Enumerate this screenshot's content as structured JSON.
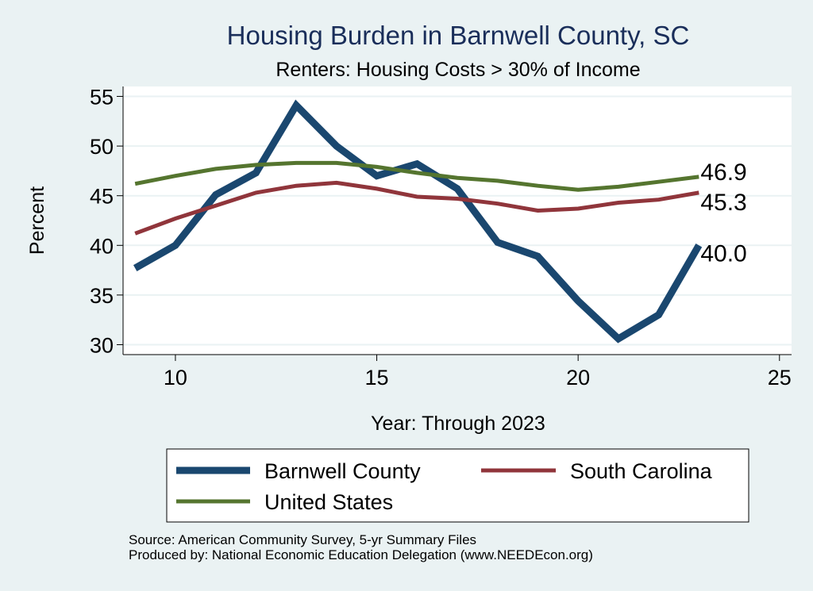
{
  "chart_data": {
    "type": "line",
    "title": "Housing Burden in Barnwell County, SC",
    "subtitle": "Renters: Housing Costs > 30% of Income",
    "xlabel": "Year: Through 2023",
    "ylabel": "Percent",
    "xlim": [
      8.7,
      25.3
    ],
    "ylim": [
      29,
      56
    ],
    "xticks": [
      10,
      15,
      20,
      25
    ],
    "yticks": [
      30,
      35,
      40,
      45,
      50,
      55
    ],
    "grid": true,
    "legend_position": "bottom",
    "series": [
      {
        "name": "Barnwell County",
        "color": "#1a476f",
        "width": 9,
        "end_label": "40.0",
        "x": [
          9,
          10,
          11,
          12,
          13,
          14,
          15,
          16,
          17,
          18,
          19,
          20,
          21,
          22,
          23
        ],
        "y": [
          37.7,
          40.0,
          45.1,
          47.3,
          54.1,
          50.0,
          47.0,
          48.2,
          45.7,
          40.3,
          38.9,
          34.4,
          30.6,
          33.0,
          40.0
        ]
      },
      {
        "name": "South Carolina",
        "color": "#90353b",
        "width": 5,
        "end_label": "45.3",
        "x": [
          9,
          10,
          11,
          12,
          13,
          14,
          15,
          16,
          17,
          18,
          19,
          20,
          21,
          22,
          23
        ],
        "y": [
          41.2,
          42.7,
          44.0,
          45.3,
          46.0,
          46.3,
          45.7,
          44.9,
          44.7,
          44.2,
          43.5,
          43.7,
          44.3,
          44.6,
          45.3
        ]
      },
      {
        "name": "United States",
        "color": "#55752f",
        "width": 5,
        "end_label": "46.9",
        "x": [
          9,
          10,
          11,
          12,
          13,
          14,
          15,
          16,
          17,
          18,
          19,
          20,
          21,
          22,
          23
        ],
        "y": [
          46.2,
          47.0,
          47.7,
          48.1,
          48.3,
          48.3,
          47.9,
          47.3,
          46.8,
          46.5,
          46.0,
          45.6,
          45.9,
          46.4,
          46.9
        ]
      }
    ]
  },
  "notes": {
    "source": "Source: American Community Survey, 5-yr Summary Files",
    "produced": "Produced by: National Economic Education Delegation (www.NEEDEcon.org)"
  }
}
